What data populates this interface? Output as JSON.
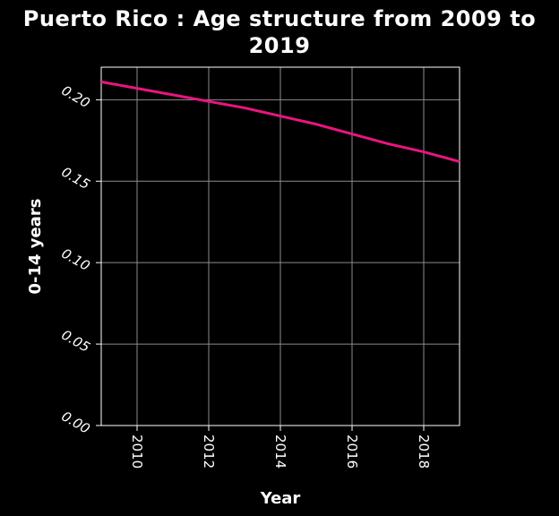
{
  "chart_data": {
    "type": "line",
    "title_line1": "Puerto Rico : Age structure from 2009 to",
    "title_line2": "2019",
    "xlabel": "Year",
    "ylabel": "0-14 years",
    "xlim": [
      2009,
      2019
    ],
    "ylim": [
      0,
      0.22
    ],
    "x_ticks": [
      2010,
      2012,
      2014,
      2016,
      2018
    ],
    "x_tick_labels": [
      "2010",
      "2012",
      "2014",
      "2016",
      "2018"
    ],
    "y_ticks": [
      0,
      0.05,
      0.1,
      0.15,
      0.2
    ],
    "y_tick_labels": [
      "0.00",
      "0.05",
      "0.10",
      "0.15",
      "0.20"
    ],
    "grid": true,
    "line_color": "#e8157f",
    "series": [
      {
        "x": [
          2009,
          2010,
          2011,
          2012,
          2013,
          2014,
          2015,
          2016,
          2017,
          2018,
          2019
        ],
        "values": [
          0.211,
          0.207,
          0.203,
          0.199,
          0.195,
          0.19,
          0.185,
          0.179,
          0.173,
          0.168,
          0.162
        ]
      }
    ]
  }
}
